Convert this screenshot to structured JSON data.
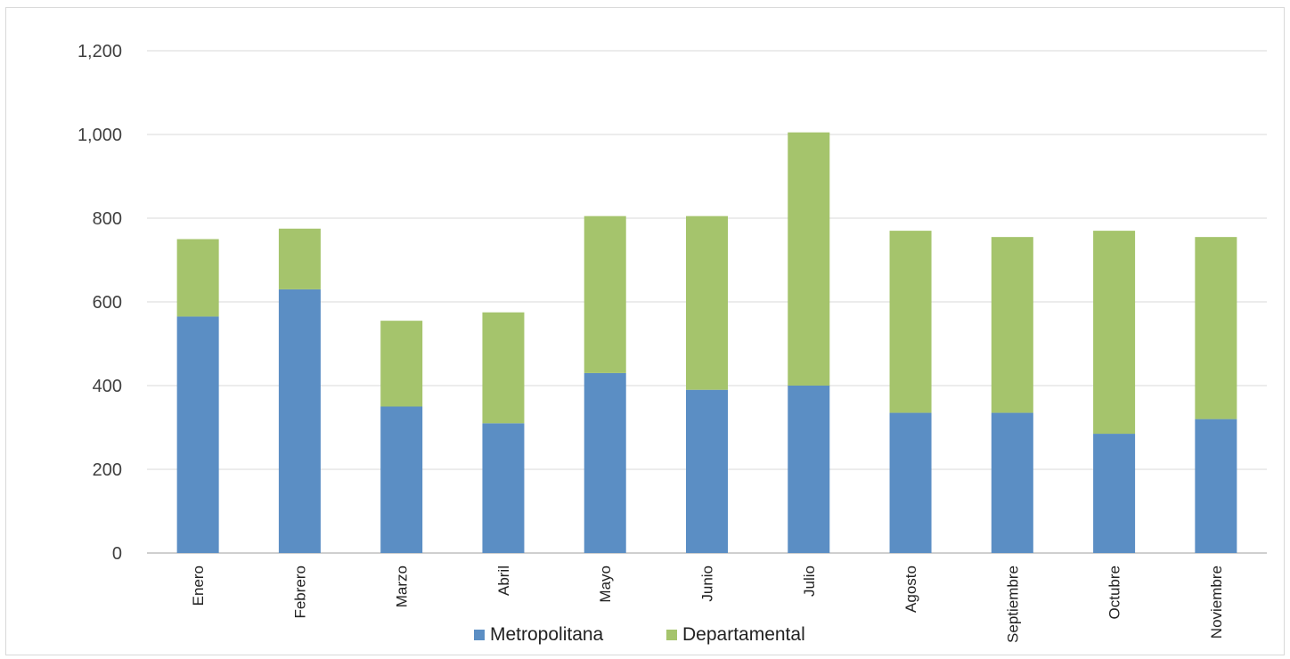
{
  "chart_data": {
    "type": "bar",
    "stacked": true,
    "categories": [
      "Enero",
      "Febrero",
      "Marzo",
      "Abril",
      "Mayo",
      "Junio",
      "Julio",
      "Agosto",
      "Septiembre",
      "Octubre",
      "Noviembre"
    ],
    "series": [
      {
        "name": "Metropolitana",
        "color": "#5b8ec4",
        "values": [
          565,
          630,
          350,
          310,
          430,
          390,
          400,
          335,
          335,
          285,
          320
        ]
      },
      {
        "name": "Departamental",
        "color": "#a5c46c",
        "values": [
          185,
          145,
          205,
          265,
          375,
          415,
          605,
          435,
          420,
          485,
          435
        ]
      }
    ],
    "ylim": [
      0,
      1200
    ],
    "yticks": [
      0,
      200,
      400,
      600,
      800,
      1000,
      1200
    ],
    "ytick_labels": [
      "0",
      "200",
      "400",
      "600",
      "800",
      "1,000",
      "1,200"
    ],
    "grid": true,
    "legend": "bottom"
  }
}
